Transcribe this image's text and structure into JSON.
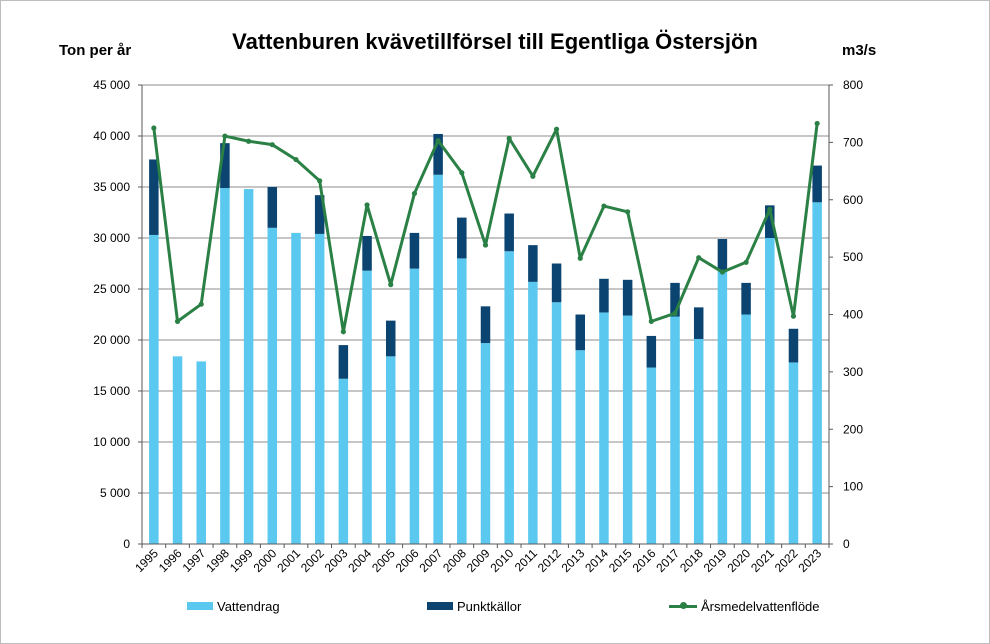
{
  "chart_data": {
    "type": "bar",
    "title": "Vattenburen kvävetillförsel till Egentliga Östersjön",
    "ylabel": "Ton per år",
    "y2label": "m3/s",
    "xlabel": "",
    "ylim": [
      0,
      45000
    ],
    "y2lim": [
      0,
      800
    ],
    "yticks": [
      "0",
      "5 000",
      "10 000",
      "15 000",
      "20 000",
      "25 000",
      "30 000",
      "35 000",
      "40 000",
      "45 000"
    ],
    "y2ticks": [
      "0",
      "100",
      "200",
      "300",
      "400",
      "500",
      "600",
      "700",
      "800"
    ],
    "categories": [
      "1995",
      "1996",
      "1997",
      "1998",
      "1999",
      "2000",
      "2001",
      "2002",
      "2003",
      "2004",
      "2005",
      "2006",
      "2007",
      "2008",
      "2009",
      "2010",
      "2011",
      "2012",
      "2013",
      "2014",
      "2015",
      "2016",
      "2017",
      "2018",
      "2019",
      "2020",
      "2021",
      "2022",
      "2023"
    ],
    "stacked": true,
    "series": [
      {
        "name": "Vattendrag",
        "kind": "bar",
        "axis": "left",
        "color": "#5bc8ef",
        "values": [
          30300,
          18400,
          17900,
          34900,
          34800,
          31000,
          30500,
          30400,
          16200,
          26800,
          18400,
          27000,
          36200,
          28000,
          19700,
          28700,
          25700,
          23700,
          19000,
          22700,
          22400,
          17300,
          22300,
          20100,
          26800,
          22500,
          30000,
          17800,
          33500
        ]
      },
      {
        "name": "Punktkällor",
        "kind": "bar",
        "axis": "left",
        "color": "#0b4470",
        "values": [
          7400,
          0,
          0,
          4400,
          0,
          4000,
          0,
          3800,
          3300,
          3400,
          3500,
          3500,
          4000,
          4000,
          3600,
          3700,
          3600,
          3800,
          3500,
          3300,
          3500,
          3100,
          3300,
          3100,
          3100,
          3100,
          3200,
          3300,
          3600
        ]
      },
      {
        "name": "Årsmedelvattenflöde",
        "kind": "line",
        "axis": "right",
        "color": "#2a8045",
        "values": [
          725,
          388,
          418,
          711,
          702,
          696,
          670,
          633,
          370,
          591,
          452,
          611,
          703,
          647,
          521,
          707,
          641,
          723,
          498,
          589,
          579,
          388,
          402,
          499,
          474,
          491,
          583,
          397,
          733
        ]
      }
    ],
    "legend_position": "bottom",
    "grid": true
  }
}
